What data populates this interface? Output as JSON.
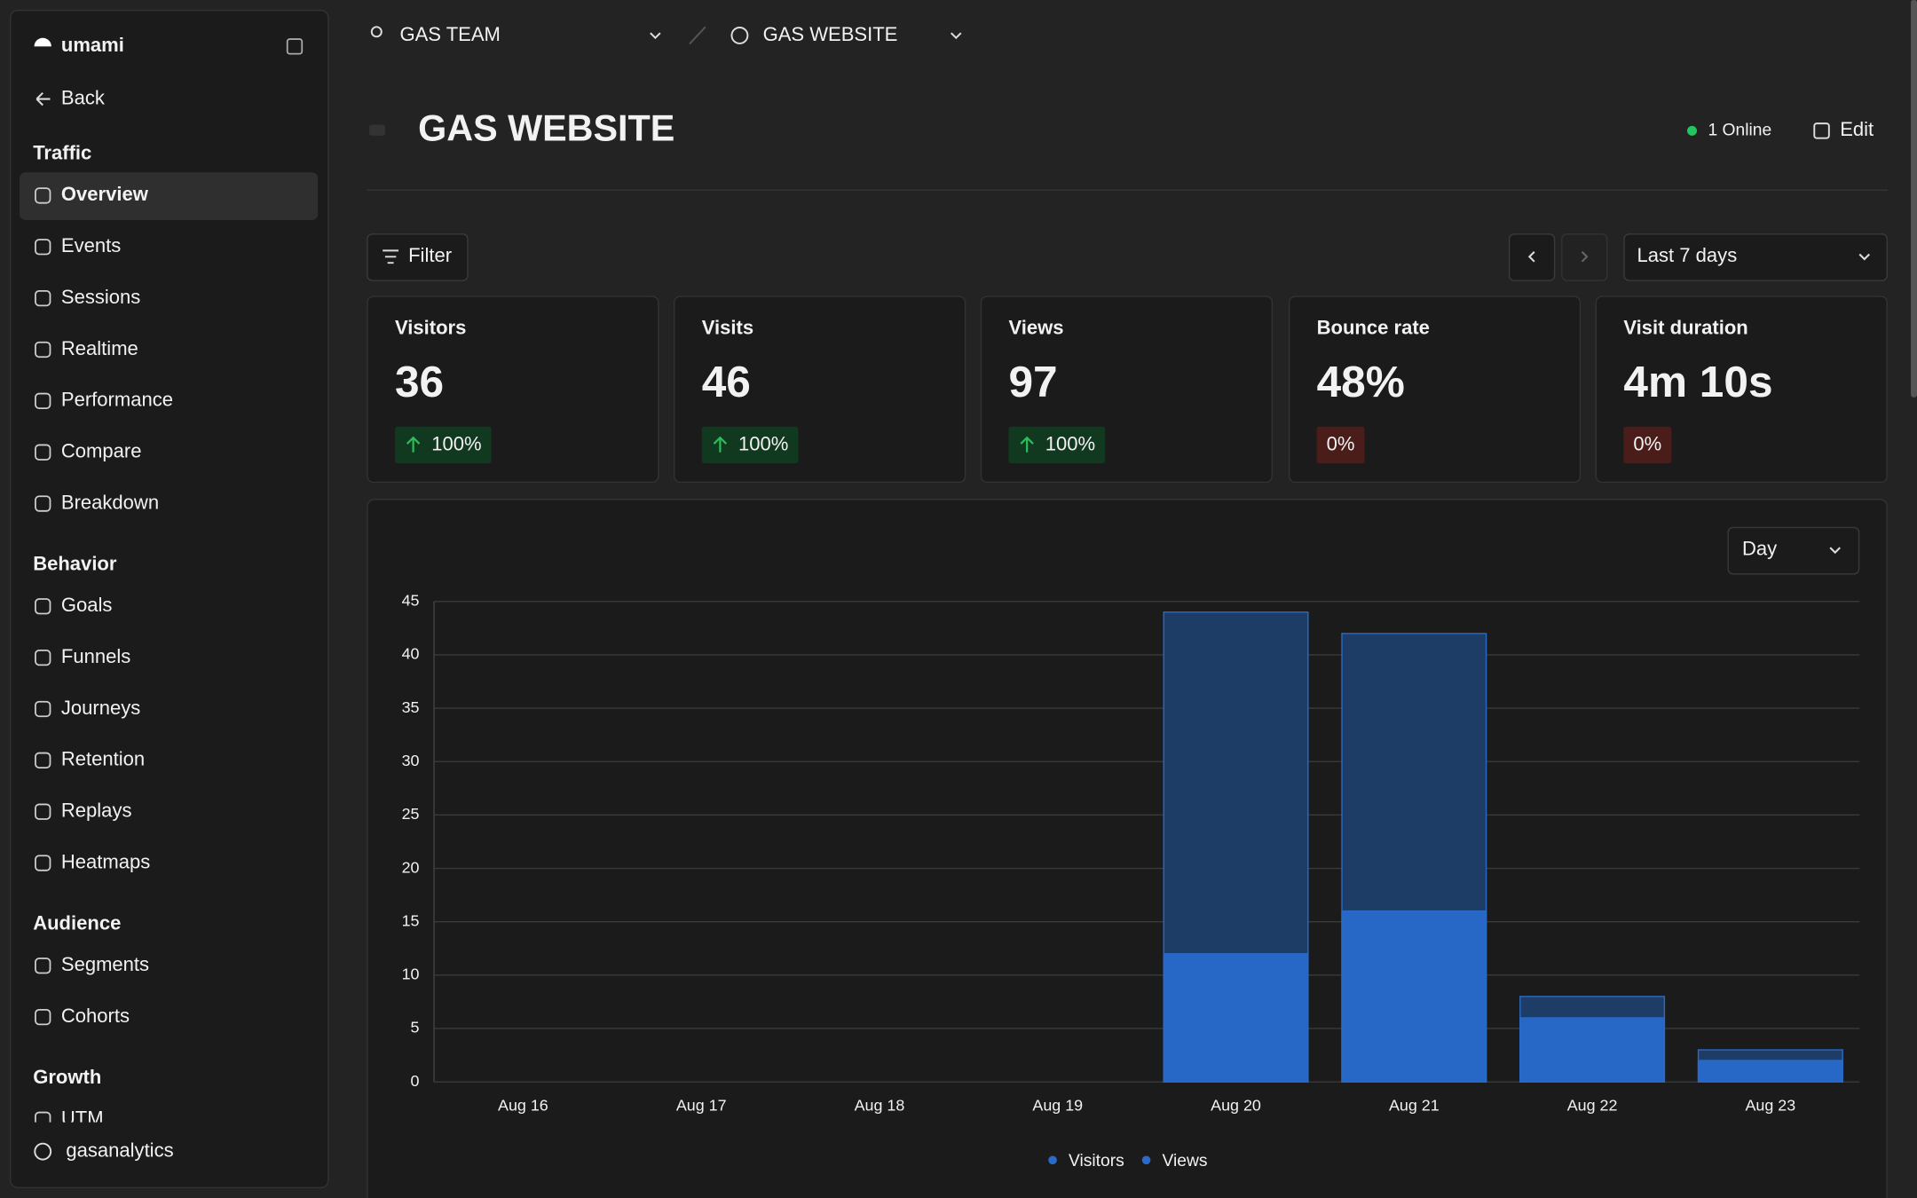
{
  "sidebar": {
    "brand": "umami",
    "back": "Back",
    "active": "Overview",
    "sections": [
      {
        "title": "Traffic",
        "items": [
          "Overview",
          "Events",
          "Sessions",
          "Realtime",
          "Performance",
          "Compare",
          "Breakdown"
        ]
      },
      {
        "title": "Behavior",
        "items": [
          "Goals",
          "Funnels",
          "Journeys",
          "Retention",
          "Replays",
          "Heatmaps"
        ]
      },
      {
        "title": "Audience",
        "items": [
          "Segments",
          "Cohorts"
        ]
      },
      {
        "title": "Growth",
        "items": [
          "UTM"
        ]
      }
    ],
    "user": "gasanalytics"
  },
  "header": {
    "team": "GAS TEAM",
    "website": "GAS WEBSITE",
    "title": "GAS WEBSITE",
    "online": "1 Online",
    "edit": "Edit"
  },
  "toolbar": {
    "filter": "Filter",
    "range": "Last 7 days",
    "unit": "Day"
  },
  "stats": [
    {
      "label": "Visitors",
      "value": "36",
      "change": "100%",
      "trend": "up"
    },
    {
      "label": "Visits",
      "value": "46",
      "change": "100%",
      "trend": "up"
    },
    {
      "label": "Views",
      "value": "97",
      "change": "100%",
      "trend": "up"
    },
    {
      "label": "Bounce rate",
      "value": "48%",
      "change": "0%",
      "trend": "flat"
    },
    {
      "label": "Visit duration",
      "value": "4m 10s",
      "change": "0%",
      "trend": "flat"
    }
  ],
  "chart_data": {
    "type": "bar",
    "categories": [
      "Aug 16",
      "Aug 17",
      "Aug 18",
      "Aug 19",
      "Aug 20",
      "Aug 21",
      "Aug 22",
      "Aug 23"
    ],
    "series": [
      {
        "name": "Visitors",
        "color": "#2767c6",
        "values": [
          0,
          0,
          0,
          0,
          12,
          16,
          6,
          2
        ]
      },
      {
        "name": "Views",
        "color": "#1e3d66",
        "values": [
          0,
          0,
          0,
          0,
          44,
          42,
          8,
          3
        ]
      }
    ],
    "ylim": [
      0,
      45
    ],
    "yticks": [
      0,
      5,
      10,
      15,
      20,
      25,
      30,
      35,
      40,
      45
    ],
    "grid": true
  }
}
